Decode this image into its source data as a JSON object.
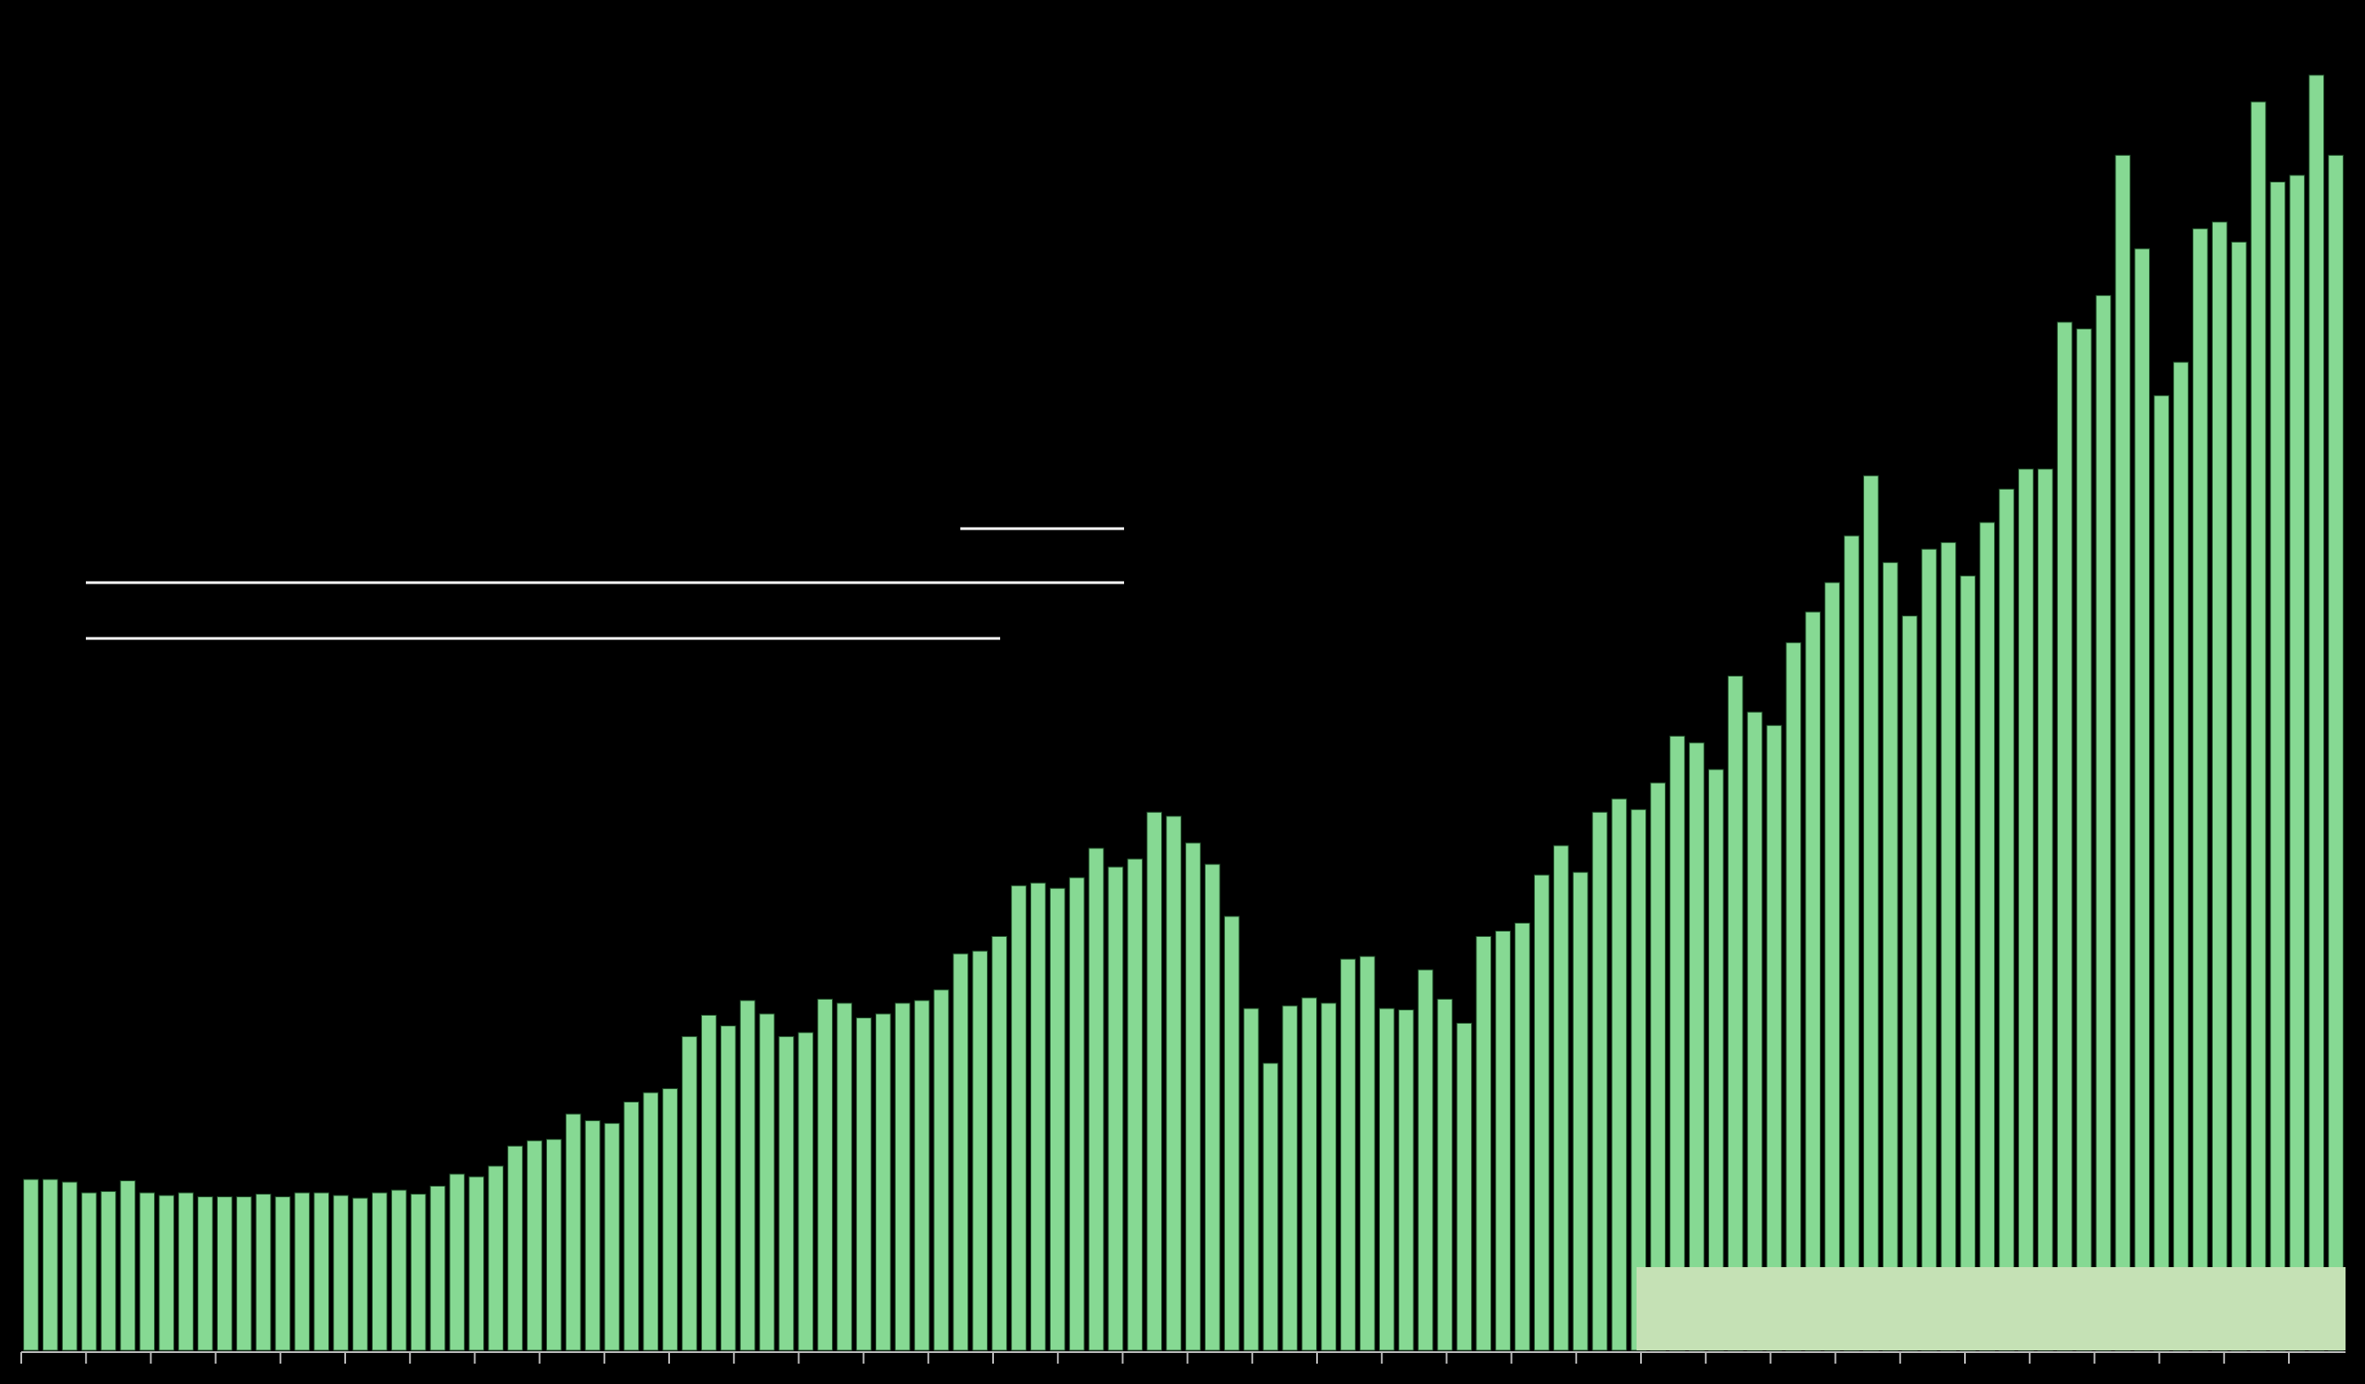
{
  "chart_data": {
    "type": "bar",
    "color": "#86d993",
    "values": [
      12.8,
      12.8,
      12.6,
      11.8,
      11.9,
      12.7,
      11.8,
      11.6,
      11.8,
      11.5,
      11.5,
      11.5,
      11.7,
      11.5,
      11.8,
      11.8,
      11.6,
      11.4,
      11.8,
      12,
      11.7,
      12.3,
      13.2,
      13,
      13.8,
      15.3,
      15.7,
      15.8,
      17.7,
      17.2,
      17,
      18.6,
      19.3,
      19.6,
      23.5,
      25.1,
      24.3,
      26.2,
      25.2,
      23.5,
      23.8,
      26.3,
      26,
      24.9,
      25.2,
      26,
      26.2,
      27,
      29.7,
      29.9,
      31,
      34.8,
      35,
      34.6,
      35.4,
      37.6,
      36.2,
      36.8,
      40.3,
      40,
      38,
      36.4,
      32.5,
      25.6,
      21.5,
      25.8,
      26.4,
      26,
      29.3,
      29.5,
      25.6,
      25.5,
      28.5,
      26.3,
      24.5,
      31,
      31.4,
      32,
      35.6,
      37.8,
      35.8,
      40.3,
      41.3,
      40.5,
      42.5,
      46,
      45.5,
      43.5,
      50.5,
      47.8,
      46.8,
      53,
      55.3,
      57.5,
      61,
      65.5,
      59,
      55,
      60,
      60.5,
      58,
      62,
      64.5,
      66,
      66,
      77,
      76.5,
      79,
      89.5,
      82.5,
      71.5,
      74,
      84,
      84.5,
      83,
      93.5,
      87.5,
      88,
      95.5,
      89.5
    ],
    "ylim": [
      0,
      100
    ]
  }
}
